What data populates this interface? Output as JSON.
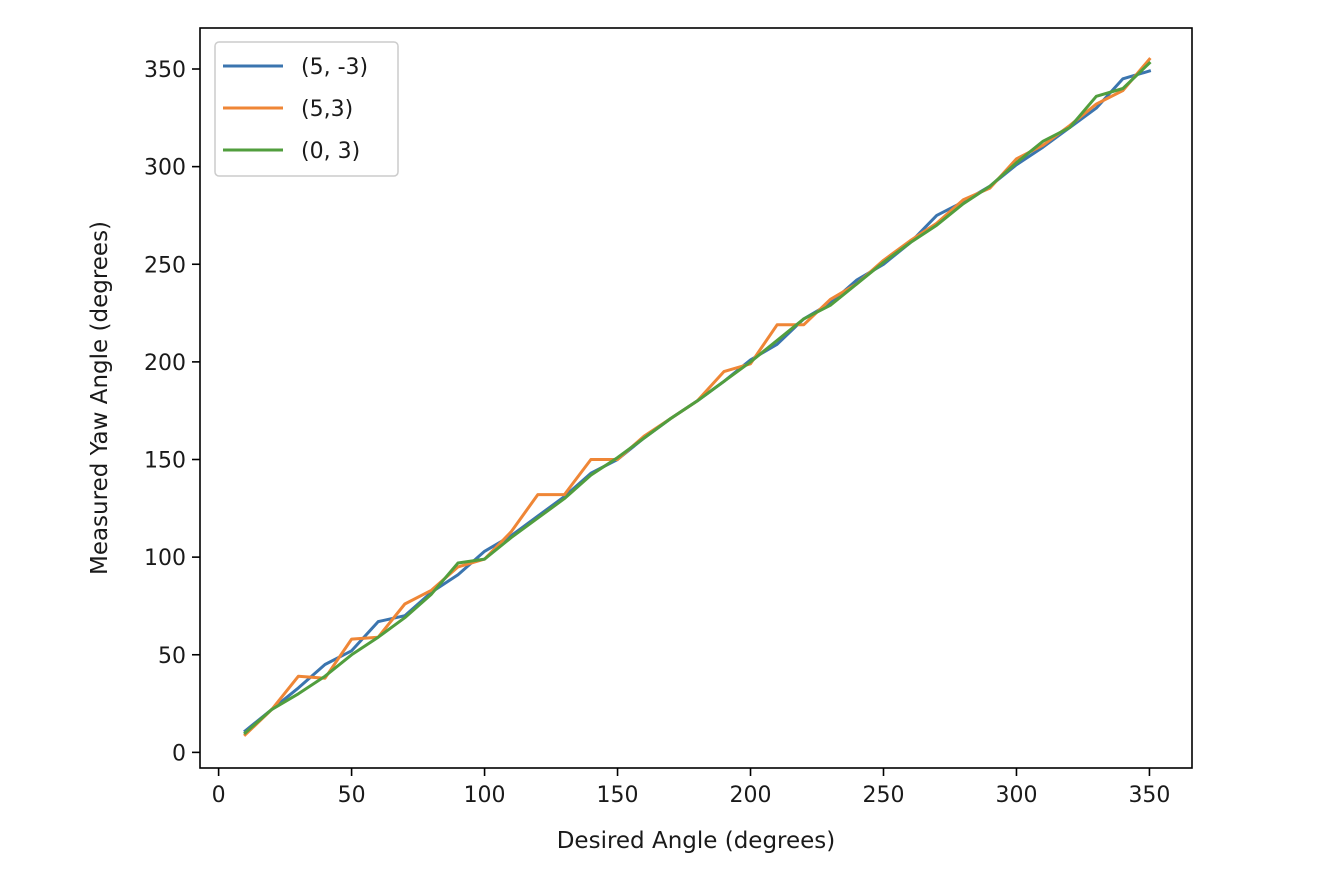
{
  "chart_data": {
    "type": "line",
    "title": "",
    "xlabel": "Desired Angle (degrees)",
    "ylabel": "Measured Yaw Angle (degrees)",
    "xlim": [
      -7,
      366
    ],
    "ylim": [
      -8,
      371
    ],
    "xticks": [
      0,
      50,
      100,
      150,
      200,
      250,
      300,
      350
    ],
    "yticks": [
      0,
      50,
      100,
      150,
      200,
      250,
      300,
      350
    ],
    "xtick_labels": [
      "0",
      "50",
      "100",
      "150",
      "200",
      "250",
      "300",
      "350"
    ],
    "ytick_labels": [
      "0",
      "50",
      "100",
      "150",
      "200",
      "250",
      "300",
      "350"
    ],
    "grid": false,
    "legend_position": "top-left",
    "x": [
      10,
      20,
      30,
      40,
      50,
      60,
      70,
      80,
      90,
      100,
      110,
      120,
      130,
      140,
      150,
      160,
      170,
      180,
      190,
      200,
      210,
      220,
      230,
      240,
      250,
      260,
      270,
      280,
      290,
      300,
      310,
      320,
      330,
      340,
      350
    ],
    "series": [
      {
        "name": "(5, -3)",
        "color": "#3b75af",
        "values": [
          11,
          22,
          33,
          45,
          52,
          67,
          70,
          82,
          91,
          103,
          111,
          121,
          131,
          143,
          150,
          161,
          171,
          180,
          190,
          201,
          209,
          222,
          230,
          242,
          250,
          261,
          275,
          282,
          290,
          301,
          310,
          320,
          330,
          345,
          349
        ]
      },
      {
        "name": "(5,3)",
        "color": "#ef8636",
        "values": [
          9,
          22,
          39,
          38,
          58,
          59,
          76,
          83,
          95,
          99,
          113,
          132,
          132,
          150,
          150,
          162,
          171,
          180,
          195,
          199,
          219,
          219,
          232,
          240,
          252,
          262,
          271,
          283,
          289,
          304,
          311,
          321,
          332,
          339,
          355
        ]
      },
      {
        "name": "(0, 3)",
        "color": "#519e3e",
        "values": [
          10,
          22,
          30,
          39,
          50,
          59,
          69,
          81,
          97,
          99,
          110,
          120,
          130,
          142,
          151,
          161,
          171,
          180,
          190,
          200,
          211,
          222,
          229,
          240,
          251,
          261,
          270,
          281,
          290,
          302,
          313,
          320,
          336,
          340,
          353
        ]
      }
    ]
  }
}
